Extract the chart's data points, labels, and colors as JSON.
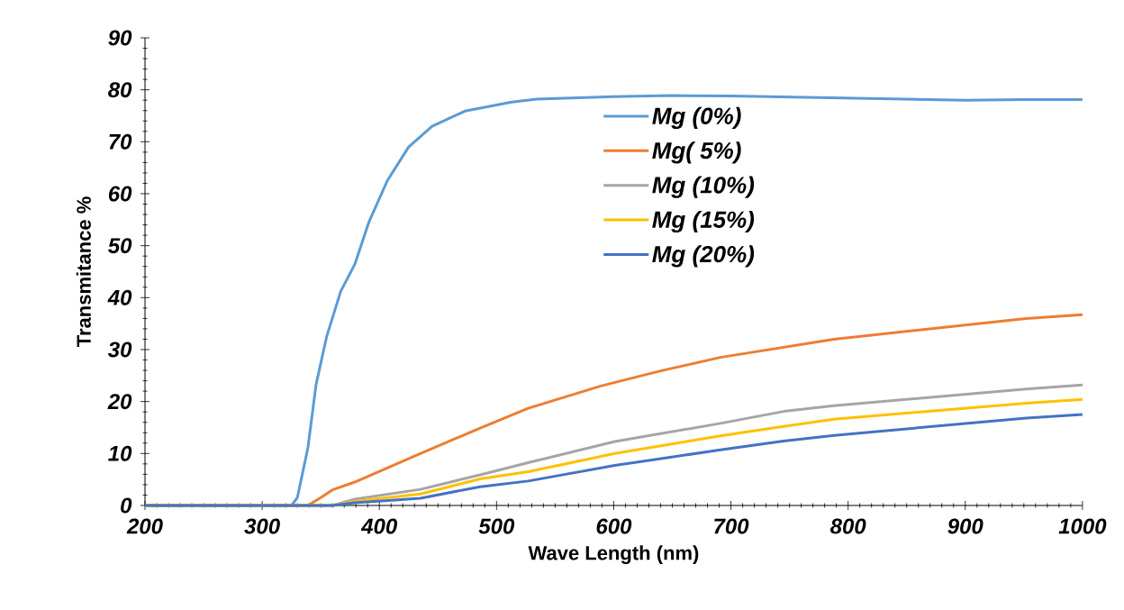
{
  "chart_data": {
    "type": "line",
    "xlabel": "Wave Length (nm)",
    "ylabel": "Transmitance %",
    "xlim": [
      200,
      1000
    ],
    "ylim": [
      0,
      90
    ],
    "xticks": [
      200,
      300,
      400,
      500,
      600,
      700,
      800,
      900,
      1000
    ],
    "yticks": [
      0,
      10,
      20,
      30,
      40,
      50,
      60,
      70,
      80,
      90
    ],
    "grid": false,
    "legend": "top",
    "marker": "none",
    "line_style": "solid",
    "series": [
      {
        "name": "Mg (0%)",
        "color": "#5b9bd5",
        "x": [
          200,
          325,
          330,
          339,
          346,
          355,
          367,
          379,
          391,
          407,
          425,
          445,
          473,
          512,
          534,
          600,
          650,
          700,
          750,
          800,
          850,
          900,
          950,
          1000
        ],
        "values": [
          0,
          0,
          1.5,
          11.1,
          23.3,
          32.5,
          41.2,
          46.4,
          54.5,
          62.6,
          69.0,
          73.0,
          75.9,
          77.6,
          78.2,
          78.7,
          78.9,
          78.8,
          78.6,
          78.4,
          78.2,
          78.0,
          78.1,
          78.1
        ]
      },
      {
        "name": "Mg( 5%)",
        "color": "#ed7d31",
        "x": [
          200,
          339,
          350,
          360,
          379,
          435,
          486,
          527,
          589,
          640,
          691,
          788,
          952,
          1000
        ],
        "values": [
          0,
          0,
          1.5,
          3.0,
          4.5,
          10.0,
          14.9,
          18.7,
          23.0,
          25.9,
          28.5,
          32.0,
          36.0,
          36.7
        ]
      },
      {
        "name": "Mg  (10%)",
        "color": "#a5a5a5",
        "x": [
          200,
          360,
          379,
          435,
          486,
          530,
          601,
          691,
          745,
          788,
          952,
          1000
        ],
        "values": [
          0,
          0,
          1.2,
          3.1,
          5.9,
          8.4,
          12.3,
          15.8,
          18.1,
          19.2,
          22.4,
          23.2
        ]
      },
      {
        "name": "Mg   (15%)",
        "color": "#ffc000",
        "x": [
          200,
          360,
          379,
          435,
          486,
          527,
          601,
          691,
          745,
          788,
          952,
          1000
        ],
        "values": [
          0,
          0,
          0.8,
          2.2,
          5.1,
          6.5,
          10.0,
          13.4,
          15.2,
          16.6,
          19.7,
          20.4
        ]
      },
      {
        "name": "Mg   (20%)",
        "color": "#4472c4",
        "x": [
          200,
          360,
          379,
          435,
          486,
          527,
          601,
          691,
          745,
          788,
          952,
          1000
        ],
        "values": [
          0,
          0,
          0.5,
          1.4,
          3.6,
          4.7,
          7.7,
          10.7,
          12.4,
          13.5,
          16.8,
          17.5
        ]
      }
    ]
  }
}
